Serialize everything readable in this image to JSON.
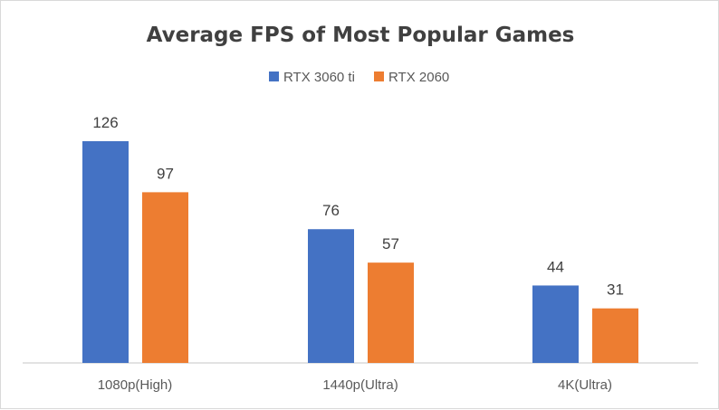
{
  "chart_data": {
    "type": "bar",
    "title": "Average FPS of Most Popular Games",
    "categories": [
      "1080p(High)",
      "1440p(Ultra)",
      "4K(Ultra)"
    ],
    "series": [
      {
        "name": "RTX 3060 ti",
        "color": "#4472c4",
        "values": [
          126,
          76,
          44
        ]
      },
      {
        "name": "RTX 2060",
        "color": "#ed7d31",
        "values": [
          97,
          57,
          31
        ]
      }
    ],
    "xlabel": "",
    "ylabel": "",
    "ylim": [
      0,
      126
    ],
    "grid": false,
    "legend": "top",
    "data_labels": true
  }
}
